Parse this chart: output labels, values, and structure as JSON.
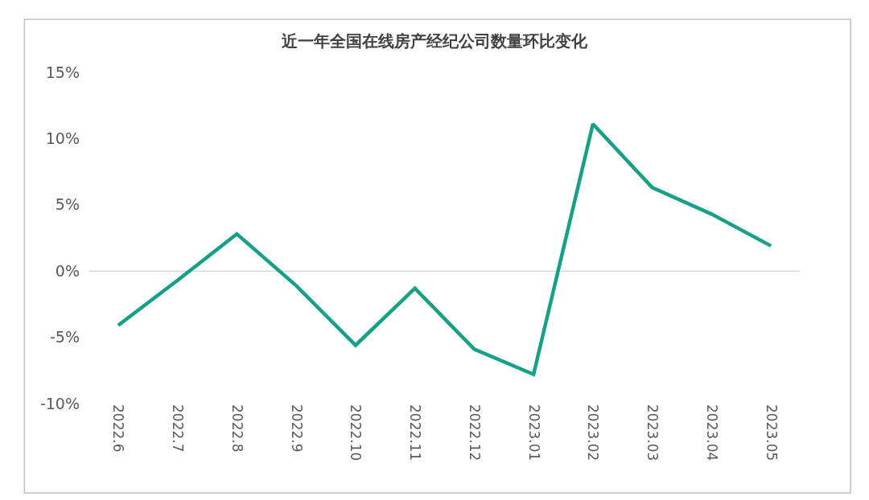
{
  "chart_data": {
    "type": "line",
    "title": "近一年全国在线房产经纪公司数量环比变化",
    "categories": [
      "2022.6",
      "2022.7",
      "2022.8",
      "2022.9",
      "2022.10",
      "2022.11",
      "2022.12",
      "2023.01",
      "2023.02",
      "2023.03",
      "2023.04",
      "2023.05"
    ],
    "series": [
      {
        "color": "#16a085",
        "values": [
          -4.1,
          -0.7,
          2.8,
          -1.1,
          -5.6,
          -1.3,
          -5.9,
          -7.8,
          11.1,
          6.3,
          4.3,
          1.9
        ]
      }
    ],
    "ylim": [
      -10,
      15
    ],
    "yticks": [
      {
        "value": -10,
        "label": "-10%"
      },
      {
        "value": -5,
        "label": "-5%"
      },
      {
        "value": 0,
        "label": "0%"
      },
      {
        "value": 5,
        "label": "5%"
      },
      {
        "value": 10,
        "label": "10%"
      },
      {
        "value": 15,
        "label": "15%"
      }
    ],
    "ref_lines": [
      {
        "axis": "y",
        "value": 0,
        "color": "#d9d9d9"
      }
    ],
    "grid": false,
    "marker": "none",
    "line_style": "solid"
  }
}
